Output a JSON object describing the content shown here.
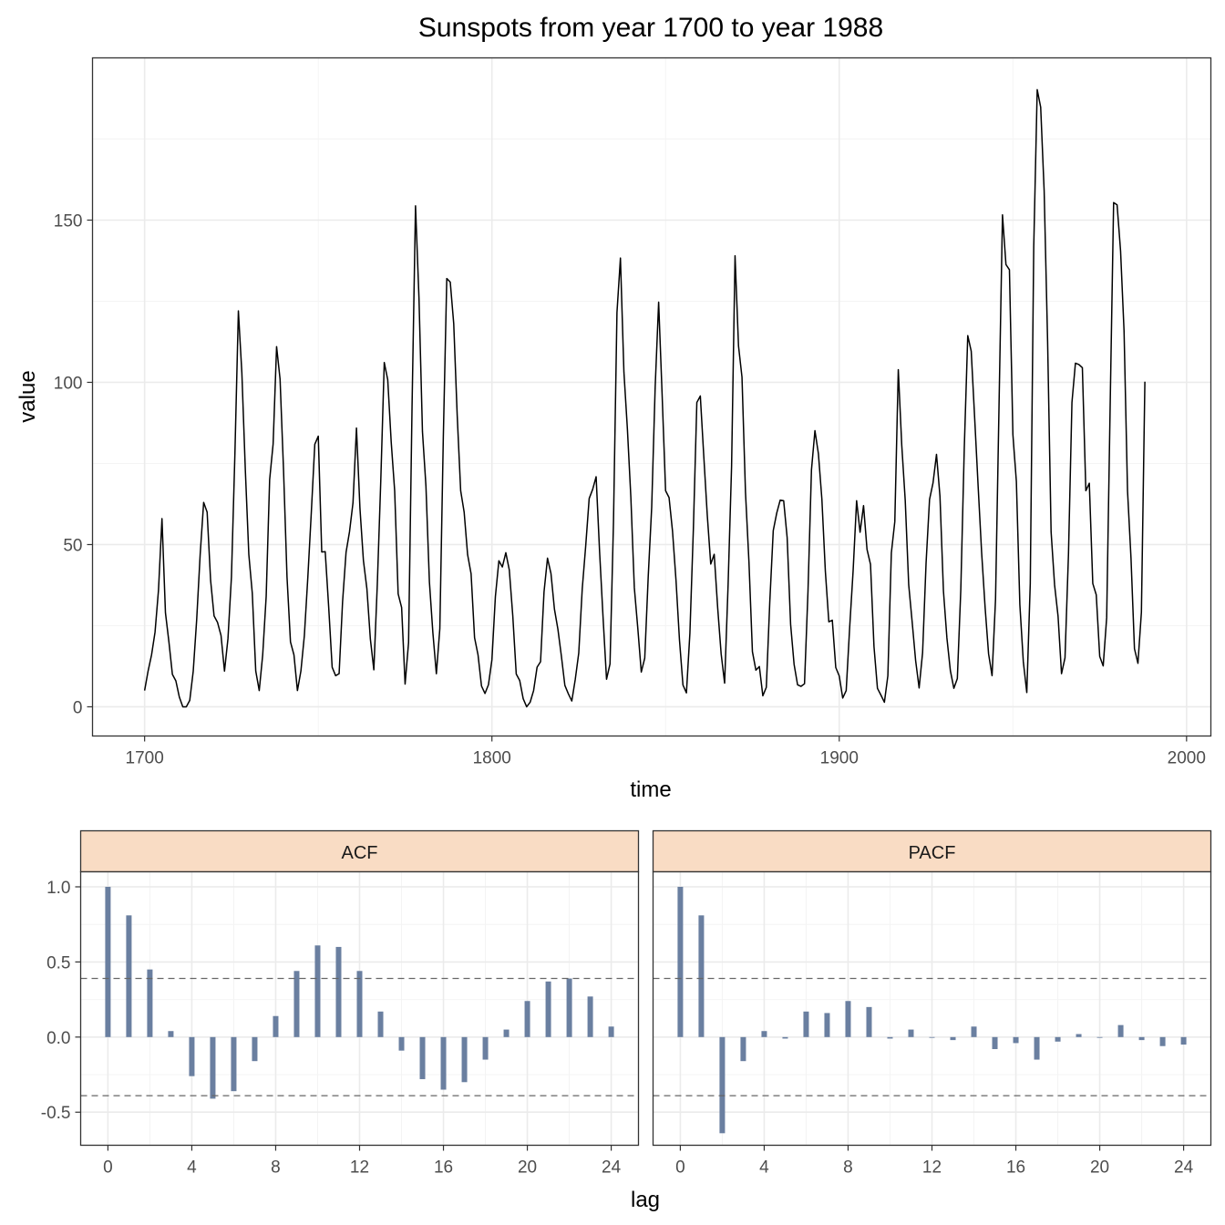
{
  "chart_data": [
    {
      "type": "line",
      "title": "Sunspots from year 1700 to year 1988",
      "xlabel": "time",
      "ylabel": "value",
      "xlim": [
        1685,
        2007
      ],
      "ylim": [
        -9,
        200
      ],
      "xticks": [
        1700,
        1800,
        1900,
        2000
      ],
      "yticks": [
        0,
        50,
        100,
        150
      ],
      "grid": true,
      "series": [
        {
          "x_start": 1700,
          "x_step": 1,
          "values": [
            5,
            11,
            16,
            23,
            36,
            58,
            29,
            20,
            10,
            8,
            3,
            0,
            0,
            2,
            11,
            27,
            47,
            63,
            60,
            39,
            28,
            26,
            22,
            11,
            21,
            40,
            78,
            122,
            103,
            73,
            47,
            35,
            11,
            5,
            16,
            34,
            70,
            81,
            111,
            101,
            73,
            40,
            20,
            16,
            5,
            11,
            22,
            40,
            60,
            80.9,
            83.4,
            47.7,
            47.8,
            30.7,
            12.2,
            9.6,
            10.2,
            32.4,
            47.6,
            54,
            62.9,
            85.9,
            61.2,
            45.1,
            36.4,
            20.9,
            11.4,
            37.8,
            69.8,
            106.1,
            100.8,
            81.6,
            66.5,
            34.8,
            30.6,
            7,
            19.8,
            92.5,
            154.4,
            125.9,
            84.8,
            68.1,
            38.5,
            22.8,
            10.2,
            24.1,
            82.9,
            132,
            130.9,
            118.1,
            89.9,
            66.6,
            60,
            46.9,
            41,
            21.3,
            16,
            6.4,
            4.1,
            6.8,
            14.5,
            34,
            45,
            43.1,
            47.5,
            42.2,
            28.1,
            10.1,
            8.1,
            2.5,
            0,
            1.4,
            5,
            12.2,
            13.9,
            35.4,
            45.8,
            41.1,
            30.1,
            23.9,
            15.6,
            6.6,
            4,
            1.8,
            8.5,
            16.6,
            36.3,
            49.6,
            64.2,
            67,
            70.9,
            47.8,
            27.5,
            8.5,
            13.2,
            56.9,
            121.5,
            138.3,
            103.2,
            85.7,
            64.6,
            36.7,
            24.2,
            10.7,
            15,
            40.1,
            61.5,
            98.5,
            124.7,
            96.3,
            66.6,
            64.5,
            54.1,
            39,
            20.6,
            6.7,
            4.3,
            22.7,
            54.8,
            93.8,
            95.8,
            77.2,
            59.1,
            44,
            47,
            30.5,
            16.3,
            7.3,
            37.6,
            74,
            139,
            111.2,
            101.6,
            66.2,
            44.7,
            17,
            11.3,
            12.4,
            3.4,
            6,
            32.3,
            54.3,
            59.7,
            63.7,
            63.5,
            52.2,
            25.4,
            13.1,
            6.8,
            6.3,
            7.1,
            35.6,
            73,
            85.1,
            78,
            64,
            41.8,
            26.2,
            26.7,
            12.1,
            9.5,
            2.7,
            5,
            24.4,
            42,
            63.5,
            53.8,
            62,
            48.5,
            43.9,
            18.6,
            5.7,
            3.6,
            1.4,
            9.6,
            47.4,
            57.1,
            103.9,
            80.6,
            63.6,
            37.6,
            26.1,
            14.2,
            5.8,
            16.7,
            44.3,
            63.9,
            69,
            77.8,
            64.9,
            35.7,
            21.2,
            11.1,
            5.7,
            8.7,
            36.1,
            79.7,
            114.4,
            109.6,
            88.8,
            67.8,
            47.5,
            30.6,
            16.3,
            9.6,
            33.2,
            92.6,
            151.6,
            136.3,
            134.7,
            83.9,
            69.4,
            31.5,
            13.9,
            4.4,
            38,
            141.7,
            190.2,
            184.8,
            159,
            112.3,
            53.9,
            37.6,
            27.9,
            10.2,
            15.1,
            47,
            93.8,
            105.9,
            105.5,
            104.5,
            66.6,
            68.9,
            38,
            34.5,
            15.5,
            12.6,
            27.5,
            92.5,
            155.4,
            154.7,
            140.5,
            115.9,
            66.6,
            45.9,
            17.9,
            13.4,
            29.2,
            100.2
          ]
        }
      ]
    },
    {
      "type": "bar",
      "title": "ACF",
      "xlabel": "lag",
      "ylabel": "",
      "xlim": [
        -1.3,
        25.3
      ],
      "ylim": [
        -0.72,
        1.1
      ],
      "xticks": [
        0,
        4,
        8,
        12,
        16,
        20,
        24
      ],
      "yticks": [
        -0.5,
        0.0,
        0.5,
        1.0
      ],
      "ytick_labels": [
        "-0.5",
        "0.0",
        "0.5",
        "1.0"
      ],
      "confidence_bounds": [
        0.39,
        -0.39
      ],
      "bar_color": "#6a7fa0",
      "categories": [
        0,
        1,
        2,
        3,
        4,
        5,
        6,
        7,
        8,
        9,
        10,
        11,
        12,
        13,
        14,
        15,
        16,
        17,
        18,
        19,
        20,
        21,
        22,
        23,
        24
      ],
      "values": [
        1.0,
        0.81,
        0.45,
        0.04,
        -0.26,
        -0.41,
        -0.36,
        -0.16,
        0.14,
        0.44,
        0.61,
        0.6,
        0.44,
        0.17,
        -0.09,
        -0.28,
        -0.35,
        -0.3,
        -0.15,
        0.05,
        0.24,
        0.37,
        0.39,
        0.27,
        0.07
      ]
    },
    {
      "type": "bar",
      "title": "PACF",
      "xlabel": "lag",
      "ylabel": "",
      "xlim": [
        -1.3,
        25.3
      ],
      "ylim": [
        -0.72,
        1.1
      ],
      "xticks": [
        0,
        4,
        8,
        12,
        16,
        20,
        24
      ],
      "yticks": [
        -0.5,
        0.0,
        0.5,
        1.0
      ],
      "confidence_bounds": [
        0.39,
        -0.39
      ],
      "bar_color": "#6a7fa0",
      "categories": [
        0,
        1,
        2,
        3,
        4,
        5,
        6,
        7,
        8,
        9,
        10,
        11,
        12,
        13,
        14,
        15,
        16,
        17,
        18,
        19,
        20,
        21,
        22,
        23,
        24
      ],
      "values": [
        1.0,
        0.81,
        -0.64,
        -0.16,
        0.04,
        -0.01,
        0.17,
        0.16,
        0.24,
        0.2,
        -0.01,
        0.05,
        0.0,
        -0.02,
        0.07,
        -0.08,
        -0.04,
        -0.15,
        -0.03,
        0.02,
        0.0,
        0.08,
        -0.02,
        -0.06,
        -0.05
      ]
    }
  ],
  "shared_xlabel": "lag"
}
